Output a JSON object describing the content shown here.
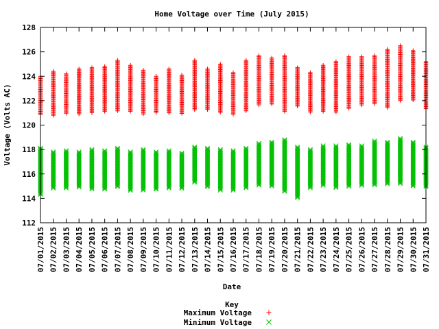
{
  "chart_data": {
    "type": "scatter",
    "title": "Home Voltage over Time (July 2015)",
    "xlabel": "Date",
    "ylabel": "Voltage (Volts AC)",
    "ylim": [
      112,
      128
    ],
    "yticks": [
      112,
      114,
      116,
      118,
      120,
      122,
      124,
      126,
      128
    ],
    "categories": [
      "07/01/2015",
      "07/02/2015",
      "07/03/2015",
      "07/04/2015",
      "07/05/2015",
      "07/06/2015",
      "07/07/2015",
      "07/08/2015",
      "07/09/2015",
      "07/10/2015",
      "07/11/2015",
      "07/12/2015",
      "07/13/2015",
      "07/14/2015",
      "07/15/2015",
      "07/16/2015",
      "07/17/2015",
      "07/18/2015",
      "07/19/2015",
      "07/20/2015",
      "07/21/2015",
      "07/22/2015",
      "07/23/2015",
      "07/24/2015",
      "07/25/2015",
      "07/26/2015",
      "07/27/2015",
      "07/28/2015",
      "07/29/2015",
      "07/30/2015",
      "07/31/2015"
    ],
    "legend": {
      "title": "Key",
      "placement": "bottom-center"
    },
    "grid": false,
    "series": [
      {
        "name": "Maximum Voltage",
        "marker": "plus",
        "color": "#ff0000",
        "ranges": [
          [
            120.8,
            124.0
          ],
          [
            120.8,
            124.4
          ],
          [
            120.9,
            124.2
          ],
          [
            120.9,
            124.6
          ],
          [
            121.0,
            124.7
          ],
          [
            121.1,
            124.8
          ],
          [
            121.1,
            125.3
          ],
          [
            121.1,
            124.9
          ],
          [
            120.9,
            124.5
          ],
          [
            121.0,
            124.0
          ],
          [
            121.0,
            124.6
          ],
          [
            120.9,
            124.1
          ],
          [
            121.2,
            125.3
          ],
          [
            121.2,
            124.6
          ],
          [
            121.0,
            125.0
          ],
          [
            120.8,
            124.3
          ],
          [
            121.1,
            125.3
          ],
          [
            121.6,
            125.7
          ],
          [
            121.7,
            125.5
          ],
          [
            121.1,
            125.7
          ],
          [
            121.5,
            124.7
          ],
          [
            121.0,
            124.3
          ],
          [
            121.1,
            124.9
          ],
          [
            121.0,
            125.2
          ],
          [
            121.3,
            125.6
          ],
          [
            121.6,
            125.6
          ],
          [
            121.7,
            125.7
          ],
          [
            121.4,
            126.2
          ],
          [
            122.0,
            126.5
          ],
          [
            122.0,
            126.1
          ],
          [
            121.3,
            125.2
          ]
        ]
      },
      {
        "name": "Minimum Voltage",
        "marker": "cross",
        "color": "#00c000",
        "ranges": [
          [
            114.3,
            118.1
          ],
          [
            114.8,
            117.8
          ],
          [
            114.8,
            117.9
          ],
          [
            114.9,
            117.8
          ],
          [
            114.7,
            118.0
          ],
          [
            114.7,
            117.9
          ],
          [
            114.9,
            118.1
          ],
          [
            114.6,
            117.8
          ],
          [
            114.6,
            118.0
          ],
          [
            114.7,
            117.8
          ],
          [
            114.8,
            117.9
          ],
          [
            114.8,
            117.7
          ],
          [
            115.3,
            118.2
          ],
          [
            114.9,
            118.1
          ],
          [
            114.6,
            118.0
          ],
          [
            114.6,
            117.9
          ],
          [
            114.8,
            118.1
          ],
          [
            115.0,
            118.5
          ],
          [
            115.0,
            118.6
          ],
          [
            114.5,
            118.8
          ],
          [
            114.0,
            118.2
          ],
          [
            114.8,
            118.0
          ],
          [
            115.0,
            118.3
          ],
          [
            114.8,
            118.3
          ],
          [
            114.9,
            118.4
          ],
          [
            115.0,
            118.3
          ],
          [
            115.1,
            118.7
          ],
          [
            115.1,
            118.6
          ],
          [
            115.2,
            118.9
          ],
          [
            115.0,
            118.6
          ],
          [
            114.9,
            118.2
          ]
        ]
      }
    ]
  }
}
